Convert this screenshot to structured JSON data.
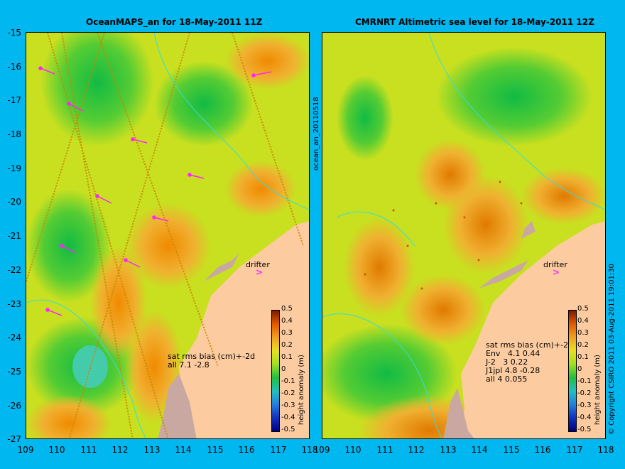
{
  "panels": [
    {
      "title": "OceanMAPS_an for 18-May-2011 11Z",
      "stats": "sat rms bias (cm)+-2d\nall 7.1 -2.8"
    },
    {
      "title": "CMRNRT Altimetric sea level  for 18-May-2011 12Z",
      "stats": "sat rms bias (cm)+-2d\nEnv   4.1 0.44\nJ-2   3 0.22\nJ1jpl 4.8 -0.28\nall 4 0.055"
    }
  ],
  "y_ticks": [
    "-15",
    "-16",
    "-17",
    "-18",
    "-19",
    "-20",
    "-21",
    "-22",
    "-23",
    "-24",
    "-25",
    "-26",
    "-27"
  ],
  "x_ticks": [
    "109",
    "110",
    "111",
    "112",
    "113",
    "114",
    "115",
    "116",
    "117",
    "118"
  ],
  "colorbar": {
    "label": "height anomaly (m)",
    "ticks": [
      "0.5",
      "0.4",
      "0.3",
      "0.2",
      "0.1",
      "0",
      "-0.1",
      "-0.2",
      "-0.3",
      "-0.4",
      "-0.5"
    ],
    "range": [
      -0.5,
      0.5
    ]
  },
  "drifter_label": "drifter",
  "side_label": "ocean_an_20110518",
  "copyright": "© Copyright CSIRO 2011  03-Aug-2011 19:01:30",
  "colors": {
    "background": "#00b7f0",
    "land": "#fccca0",
    "drifter": "#ff22ff"
  }
}
